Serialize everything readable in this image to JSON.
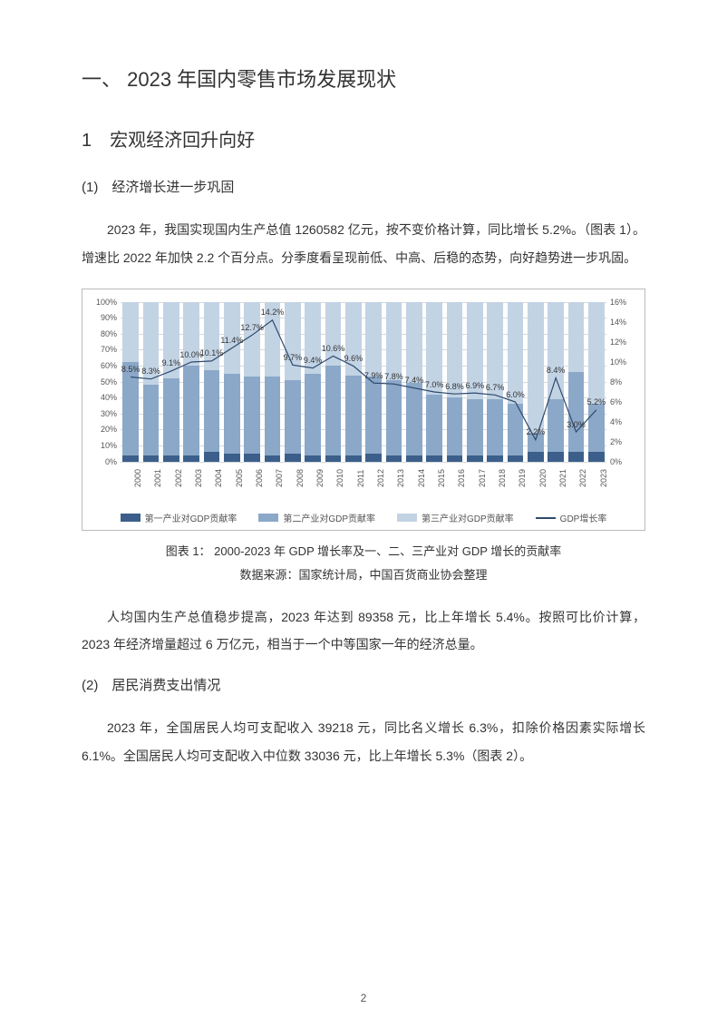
{
  "headings": {
    "h1": "一、 2023 年国内零售市场发展现状",
    "h2": "1　宏观经济回升向好",
    "h3a": "(1)　经济增长进一步巩固",
    "h3b": "(2)　居民消费支出情况"
  },
  "paragraphs": {
    "p1": "2023 年，我国实现国内生产总值 1260582 亿元，按不变价格计算，同比增长 5.2%。（图表 1）。增速比 2022 年加快 2.2 个百分点。分季度看呈现前低、中高、后稳的态势，向好趋势进一步巩固。",
    "p2": "人均国内生产总值稳步提高，2023 年达到 89358 元，比上年增长 5.4%。按照可比价计算，2023 年经济增量超过 6 万亿元，相当于一个中等国家一年的经济总量。",
    "p3": "2023 年，全国居民人均可支配收入 39218 元，同比名义增长 6.3%，扣除价格因素实际增长 6.1%。全国居民人均可支配收入中位数 33036 元，比上年增长 5.3%（图表 2）。"
  },
  "caption": {
    "line1": "图表 1： 2000-2023 年 GDP 增长率及一、二、三产业对 GDP 增长的贡献率",
    "line2": "数据来源：国家统计局，中国百货商业协会整理"
  },
  "page_number": "2",
  "chart": {
    "type": "stacked-bar-with-line",
    "background_color": "#ffffff",
    "grid_color": "#d9d9d9",
    "colors": {
      "primary": "#3b5f8a",
      "secondary": "#8ba8c8",
      "tertiary": "#c2d3e4",
      "line": "#2f4a6d"
    },
    "left_axis": {
      "min": 0,
      "max": 100,
      "step": 10,
      "suffix": "%"
    },
    "right_axis": {
      "min": 0,
      "max": 16,
      "step": 2,
      "suffix": "%"
    },
    "years": [
      "2000",
      "2001",
      "2002",
      "2003",
      "2004",
      "2005",
      "2006",
      "2007",
      "2008",
      "2009",
      "2010",
      "2011",
      "2012",
      "2013",
      "2014",
      "2015",
      "2016",
      "2017",
      "2018",
      "2019",
      "2020",
      "2021",
      "2022",
      "2023"
    ],
    "primary_values": [
      4,
      4,
      4,
      4,
      6,
      5,
      5,
      4,
      5,
      4,
      4,
      4,
      5,
      4,
      4,
      4,
      4,
      4,
      4,
      4,
      6,
      6,
      6,
      6
    ],
    "secondary_values": [
      58,
      44,
      48,
      56,
      51,
      50,
      48,
      49,
      46,
      51,
      56,
      50,
      48,
      47,
      45,
      38,
      36,
      35,
      35,
      32,
      12,
      33,
      50,
      30
    ],
    "tertiary_values": [
      38,
      52,
      48,
      40,
      43,
      45,
      47,
      47,
      49,
      45,
      40,
      46,
      47,
      49,
      51,
      58,
      60,
      61,
      61,
      64,
      82,
      61,
      44,
      64
    ],
    "gdp_growth": [
      8.5,
      8.3,
      9.1,
      10.0,
      10.1,
      11.4,
      12.7,
      14.2,
      9.7,
      9.4,
      10.6,
      9.6,
      7.9,
      7.8,
      7.4,
      7.0,
      6.8,
      6.9,
      6.7,
      6.0,
      2.2,
      8.4,
      3.0,
      5.2
    ],
    "gdp_labels": [
      "8.5%",
      "8.3%",
      "9.1%",
      "10.0%",
      "10.1%",
      "11.4%",
      "12.7%",
      "14.2%",
      "9.7%",
      "9.4%",
      "10.6%",
      "9.6%",
      "7.9%",
      "7.8%",
      "7.4%",
      "7.0%",
      "6.8%",
      "6.9%",
      "6.7%",
      "6.0%",
      "2.2%",
      "8.4%",
      "3.0%",
      "5.2%"
    ],
    "legend": {
      "primary": "第一产业对GDP贡献率",
      "secondary": "第二产业对GDP贡献率",
      "tertiary": "第三产业对GDP贡献率",
      "line": "GDP增长率"
    }
  }
}
